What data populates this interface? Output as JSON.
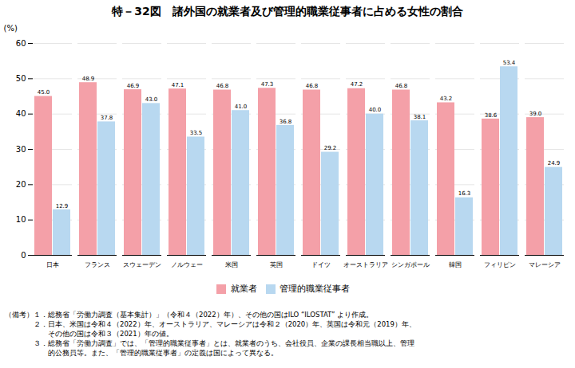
{
  "chart_data": {
    "type": "bar",
    "title": "特－32図　諸外国の就業者及び管理的職業従事者に占める女性の割合",
    "categories": [
      "日本",
      "フランス",
      "スウェーデン",
      "ノルウェー",
      "米国",
      "英国",
      "ドイツ",
      "オーストラリア",
      "シンガポール",
      "韓国",
      "フィリピン",
      "マレーシア"
    ],
    "series": [
      {
        "name": "就業者",
        "color": "#f4a0a8",
        "values": [
          45.0,
          48.9,
          46.9,
          47.1,
          46.8,
          47.3,
          46.8,
          47.2,
          46.8,
          43.2,
          38.6,
          39.0
        ],
        "value_labels": [
          "45.0",
          "48.9",
          "46.9",
          "47.1",
          "46.8",
          "47.3",
          "46.8",
          "47.2",
          "46.8",
          "43.2",
          "38.6",
          "39.0"
        ]
      },
      {
        "name": "管理的職業従事者",
        "color": "#b8d8f0",
        "values": [
          12.9,
          37.8,
          43.0,
          33.5,
          41.0,
          36.8,
          29.2,
          40.0,
          38.1,
          16.3,
          53.4,
          24.9
        ],
        "value_labels": [
          "12.9",
          "37.8",
          "43.0",
          "33.5",
          "41.0",
          "36.8",
          "29.2",
          "40.0",
          "38.1",
          "16.3",
          "53.4",
          "24.9"
        ]
      }
    ],
    "ylabel": "(%)",
    "ylim": [
      0,
      60
    ],
    "yticks": [
      0,
      10,
      20,
      30,
      40,
      50,
      60
    ],
    "grid": true,
    "legend": "bottom",
    "data_labels": true,
    "notes": [
      "（備考）１．総務省「労働力調査（基本集計）」（令和４（2022）年）、その他の国はILO “ILOSTAT” より作成。",
      "　　　　２．日本、米国は令和４（2022）年、オーストラリア、マレーシアは令和２（2020）年、英国は令和元（2019）年、",
      "　　　　　　その他の国は令和３（2021）年の値。",
      "　　　　３．総務省「労働力調査」では、「管理的職業従事者」とは、就業者のうち、会社役員、企業の課長相当職以上、管理",
      "　　　　　　的公務員等。また、「管理的職業従事者」の定義は国によって異なる。"
    ]
  }
}
